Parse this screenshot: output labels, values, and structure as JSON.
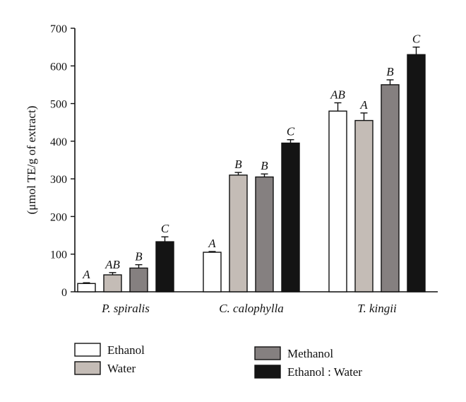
{
  "chart_data": {
    "type": "bar",
    "title": "",
    "xlabel": "",
    "ylabel": "(μmol TE/g of extract)",
    "ylim": [
      0,
      700
    ],
    "yticks": [
      0,
      100,
      200,
      300,
      400,
      500,
      600,
      700
    ],
    "categories": [
      "P. spiralis",
      "C. calophylla",
      "T. kingii"
    ],
    "series": [
      {
        "name": "Ethanol",
        "color": "#ffffff",
        "values": [
          22,
          105,
          480
        ],
        "errors": [
          2,
          2,
          22
        ],
        "letters": [
          "A",
          "A",
          "AB"
        ]
      },
      {
        "name": "Water",
        "color": "#c4bcb6",
        "values": [
          45,
          310,
          455
        ],
        "errors": [
          6,
          7,
          20
        ],
        "letters": [
          "AB",
          "B",
          "A"
        ]
      },
      {
        "name": "Methanol",
        "color": "#858080",
        "values": [
          63,
          305,
          550
        ],
        "errors": [
          9,
          8,
          13
        ],
        "letters": [
          "B",
          "B",
          "B"
        ]
      },
      {
        "name": "Ethanol : Water",
        "color": "#141414",
        "values": [
          133,
          395,
          630
        ],
        "errors": [
          13,
          9,
          20
        ],
        "letters": [
          "C",
          "C",
          "C"
        ]
      }
    ],
    "grid": false,
    "legend": "bottom"
  }
}
